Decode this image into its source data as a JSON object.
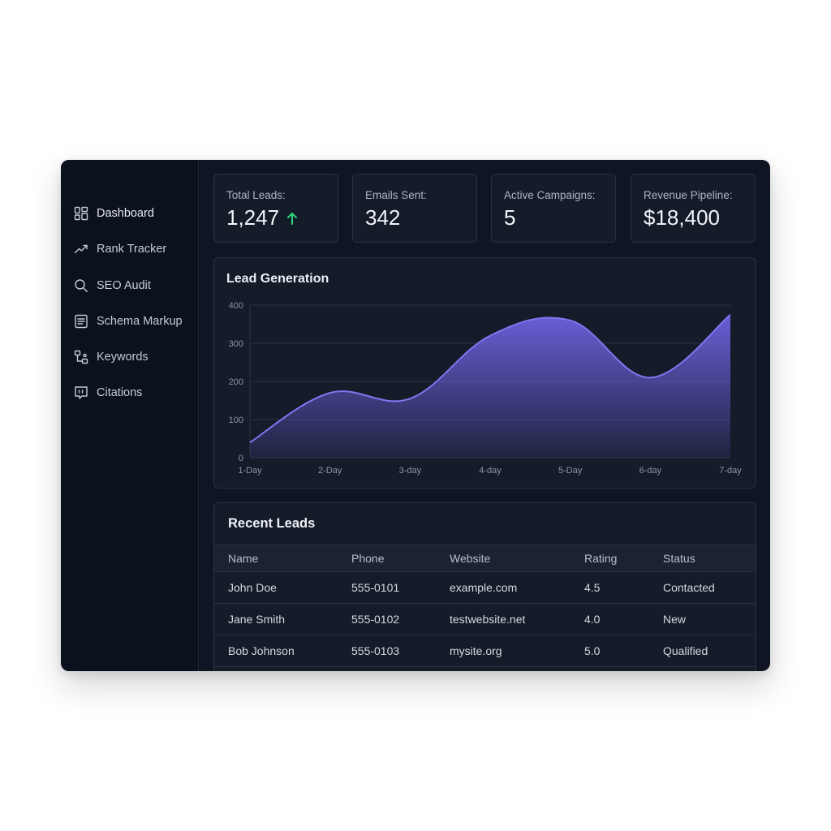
{
  "sidebar": {
    "items": [
      {
        "label": "Dashboard",
        "icon": "dashboard-grid-icon",
        "active": true
      },
      {
        "label": "Rank Tracker",
        "icon": "trend-line-icon",
        "active": false
      },
      {
        "label": "SEO Audit",
        "icon": "search-icon",
        "active": false
      },
      {
        "label": "Schema Markup",
        "icon": "document-list-icon",
        "active": false
      },
      {
        "label": "Keywords",
        "icon": "flow-nodes-icon",
        "active": false
      },
      {
        "label": "Citations",
        "icon": "quote-bubble-icon",
        "active": false
      }
    ]
  },
  "stats": [
    {
      "label": "Total Leads:",
      "value": "1,247",
      "trend_icon": "arrow-up-icon",
      "trend_color": "#34d17a"
    },
    {
      "label": "Emails Sent:",
      "value": "342"
    },
    {
      "label": "Active Campaigns:",
      "value": "5"
    },
    {
      "label": "Revenue Pipeline:",
      "value": "$18,400"
    }
  ],
  "chart": {
    "title": "Lead Generation"
  },
  "chart_data": {
    "type": "area",
    "title": "Lead Generation",
    "categories": [
      "1-Day",
      "2-Day",
      "3-day",
      "4-day",
      "5-Day",
      "6-day",
      "7-day"
    ],
    "values": [
      40,
      170,
      155,
      320,
      360,
      210,
      375
    ],
    "ylim": [
      0,
      400
    ],
    "yticks": [
      "0",
      "100",
      "200",
      "300",
      "400"
    ],
    "grid": true,
    "color": "#6d63e0"
  },
  "table": {
    "title": "Recent Leads",
    "columns": [
      "Name",
      "Phone",
      "Website",
      "Rating",
      "Status"
    ],
    "rows": [
      {
        "name": "John Doe",
        "phone": "555-0101",
        "website": "example.com",
        "rating": "4.5",
        "status": "Contacted"
      },
      {
        "name": "Jane Smith",
        "phone": "555-0102",
        "website": "testwebsite.net",
        "rating": "4.0",
        "status": "New"
      },
      {
        "name": "Bob Johnson",
        "phone": "555-0103",
        "website": "mysite.org",
        "rating": "5.0",
        "status": "Qualified"
      }
    ]
  }
}
